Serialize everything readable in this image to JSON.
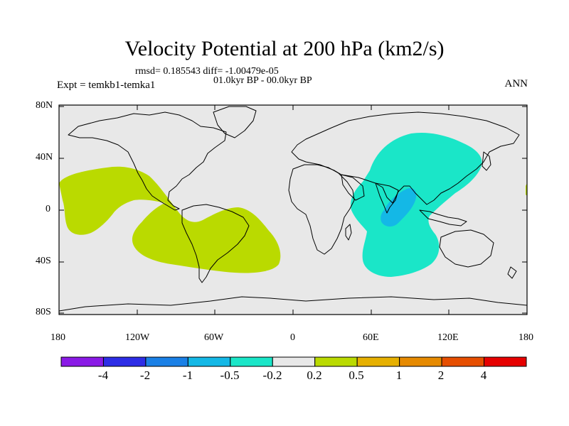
{
  "title": "Velocity Potential at 200 hPa (km2/s)",
  "stats": "rmsd= 0.185543 diff= -1.00479e-05",
  "period": "01.0kyr BP - 00.0kyr BP",
  "experiment": "Expt = temkb1-temka1",
  "season": "ANN",
  "lat_ticks": [
    "80N",
    "40N",
    "0",
    "40S",
    "80S"
  ],
  "lon_ticks": [
    "180",
    "120W",
    "60W",
    "0",
    "60E",
    "120E",
    "180"
  ],
  "colorbar": {
    "colors": [
      "#8a1ae6",
      "#2d2de6",
      "#1a80e6",
      "#14b8e6",
      "#1ae6c8",
      "#e8e8e8",
      "#bada00",
      "#e6b000",
      "#e68a00",
      "#e64e00",
      "#e60000"
    ],
    "labels": [
      "-4",
      "-2",
      "-1",
      "-0.5",
      "-0.2",
      "0.2",
      "0.5",
      "1",
      "2",
      "4"
    ]
  },
  "colors": {
    "background": "#e8e8e8",
    "positive": "#bada00",
    "negative": "#1ae6c8",
    "strong_negative": "#14b8e6"
  }
}
